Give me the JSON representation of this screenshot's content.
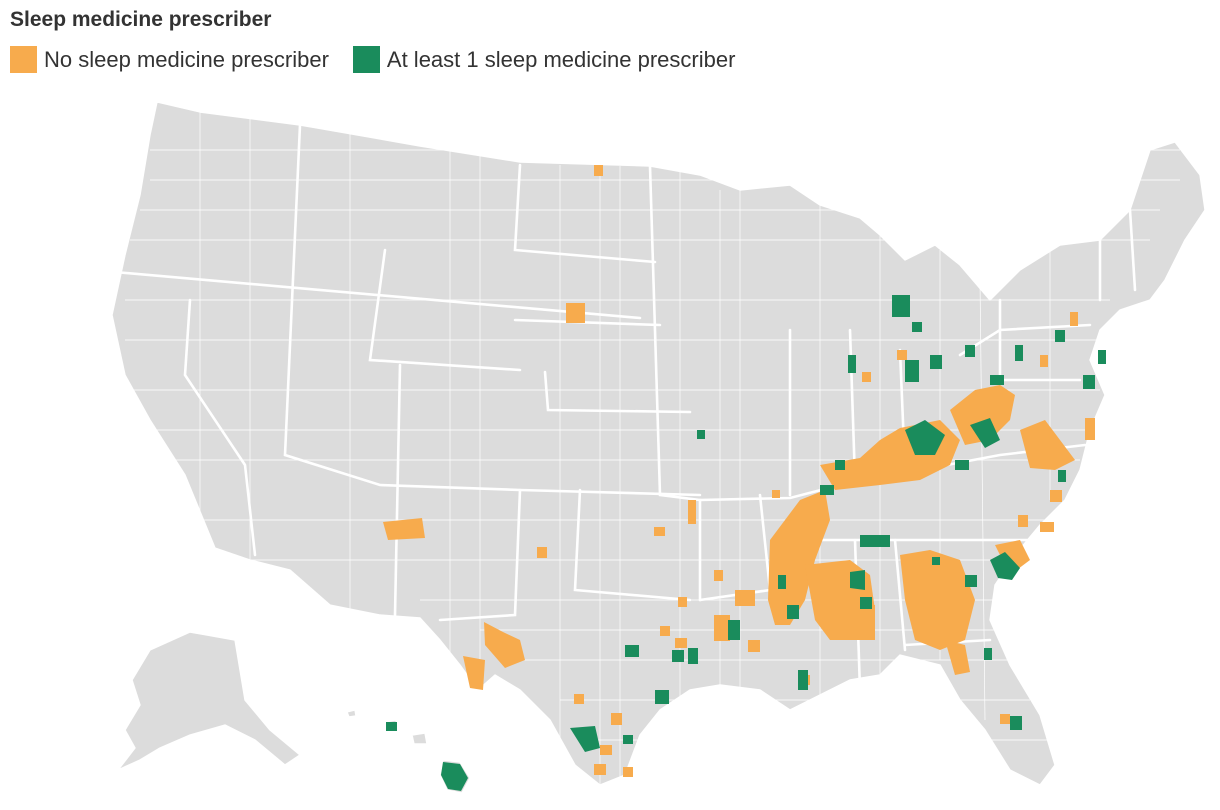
{
  "title": "Sleep medicine prescriber",
  "legend": {
    "no_prescriber": "No sleep medicine prescriber",
    "at_least_one": "At least 1 sleep medicine prescriber"
  },
  "colors": {
    "no_prescriber": "#f7ab4d",
    "at_least_one": "#1a8c5c",
    "other": "#dcdcdc",
    "background": "#ffffff"
  },
  "map_data": {
    "region": "United States counties",
    "categories": [
      "no_prescriber",
      "at_least_one"
    ],
    "highlight_regions": {
      "no_prescriber": [
        "North Dakota (north)",
        "South Dakota (central)",
        "New Mexico (north)",
        "West Texas",
        "Central Texas",
        "South Texas",
        "Oklahoma",
        "Arkansas / Mississippi Delta",
        "Louisiana",
        "Tennessee",
        "Mississippi",
        "Alabama",
        "Georgia",
        "Kentucky (east)",
        "West Virginia",
        "Virginia",
        "North Carolina",
        "South Carolina",
        "Florida (north)",
        "Pennsylvania (north)"
      ],
      "at_least_one": [
        "Michigan (north)",
        "Ohio",
        "Indiana",
        "Kentucky",
        "West Virginia",
        "Virginia",
        "Pennsylvania",
        "Maryland",
        "New Jersey",
        "Tennessee",
        "Alabama",
        "Georgia",
        "South Carolina",
        "Texas (south)",
        "Louisiana",
        "Florida (central)",
        "Hawaii",
        "Missouri"
      ]
    }
  }
}
